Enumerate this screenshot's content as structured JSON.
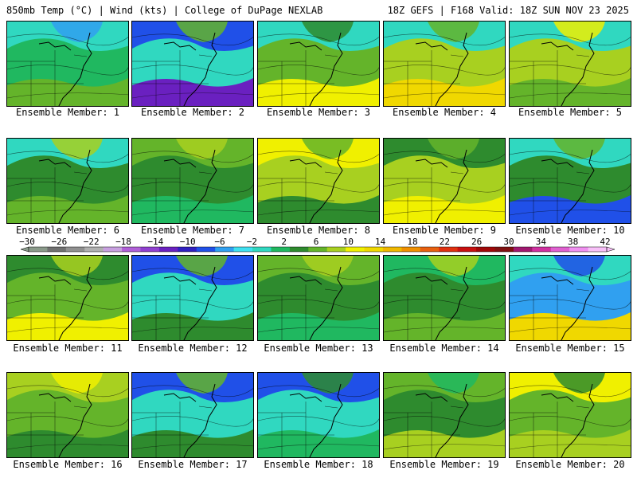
{
  "header": {
    "left": "850mb Temp (°C) | Wind (kts) | College of DuPage NEXLAB",
    "right": "18Z GEFS | F168 Valid: 18Z SUN NOV 23 2025"
  },
  "colorbar": {
    "labels": [
      "−30",
      "−26",
      "−22",
      "−18",
      "−14",
      "−10",
      "−6",
      "−2",
      "2",
      "6",
      "10",
      "14",
      "18",
      "22",
      "26",
      "30",
      "34",
      "38",
      "42"
    ],
    "colors": [
      "#8a9a8a",
      "#707070",
      "#909090",
      "#b0b0b0",
      "#c8a0e0",
      "#b060d8",
      "#9040d0",
      "#6a20c0",
      "#3020c0",
      "#2050e8",
      "#30a0f0",
      "#40e0f0",
      "#30d8c0",
      "#20b860",
      "#2e8b2e",
      "#64b42a",
      "#a8d020",
      "#f0f000",
      "#f0d800",
      "#f0b800",
      "#f09000",
      "#e86010",
      "#e03010",
      "#c81010",
      "#a00808",
      "#801010",
      "#a01870",
      "#d030a0",
      "#e060d0",
      "#f090f0",
      "#f8c0f8"
    ]
  },
  "members": [
    {
      "label": "Ensemble Member: 1",
      "palette": [
        "#20b860",
        "#30d8c0",
        "#64b42a",
        "#30a0f0"
      ]
    },
    {
      "label": "Ensemble Member: 2",
      "palette": [
        "#30d8c0",
        "#2050e8",
        "#6a20c0",
        "#64b42a"
      ]
    },
    {
      "label": "Ensemble Member: 3",
      "palette": [
        "#64b42a",
        "#30d8c0",
        "#f0f000",
        "#2e8b2e"
      ]
    },
    {
      "label": "Ensemble Member: 4",
      "palette": [
        "#a8d020",
        "#30d8c0",
        "#f0d800",
        "#64b42a"
      ]
    },
    {
      "label": "Ensemble Member: 5",
      "palette": [
        "#a8d020",
        "#30d8c0",
        "#64b42a",
        "#f0f000"
      ]
    },
    {
      "label": "Ensemble Member: 6",
      "palette": [
        "#2e8b2e",
        "#30d8c0",
        "#64b42a",
        "#a8d020"
      ]
    },
    {
      "label": "Ensemble Member: 7",
      "palette": [
        "#2e8b2e",
        "#64b42a",
        "#20b860",
        "#a8d020"
      ]
    },
    {
      "label": "Ensemble Member: 8",
      "palette": [
        "#a8d020",
        "#f0f000",
        "#2e8b2e",
        "#64b42a"
      ]
    },
    {
      "label": "Ensemble Member: 9",
      "palette": [
        "#a8d020",
        "#2e8b2e",
        "#f0f000",
        "#64b42a"
      ]
    },
    {
      "label": "Ensemble Member: 10",
      "palette": [
        "#2e8b2e",
        "#30d8c0",
        "#2050e8",
        "#64b42a"
      ]
    },
    {
      "label": "Ensemble Member: 11",
      "palette": [
        "#64b42a",
        "#2e8b2e",
        "#f0f000",
        "#a8d020"
      ]
    },
    {
      "label": "Ensemble Member: 12",
      "palette": [
        "#30d8c0",
        "#2050e8",
        "#2e8b2e",
        "#64b42a"
      ]
    },
    {
      "label": "Ensemble Member: 13",
      "palette": [
        "#2e8b2e",
        "#64b42a",
        "#20b860",
        "#a8d020"
      ]
    },
    {
      "label": "Ensemble Member: 14",
      "palette": [
        "#2e8b2e",
        "#20b860",
        "#64b42a",
        "#a8d020"
      ]
    },
    {
      "label": "Ensemble Member: 15",
      "palette": [
        "#30a0f0",
        "#30d8c0",
        "#f0d800",
        "#2050e8"
      ]
    },
    {
      "label": "Ensemble Member: 16",
      "palette": [
        "#64b42a",
        "#a8d020",
        "#2e8b2e",
        "#f0f000"
      ]
    },
    {
      "label": "Ensemble Member: 17",
      "palette": [
        "#30d8c0",
        "#2050e8",
        "#2e8b2e",
        "#64b42a"
      ]
    },
    {
      "label": "Ensemble Member: 18",
      "palette": [
        "#30d8c0",
        "#2050e8",
        "#20b860",
        "#2e8b2e"
      ]
    },
    {
      "label": "Ensemble Member: 19",
      "palette": [
        "#2e8b2e",
        "#64b42a",
        "#a8d020",
        "#20b860"
      ]
    },
    {
      "label": "Ensemble Member: 20",
      "palette": [
        "#64b42a",
        "#f0f000",
        "#a8d020",
        "#2e8b2e"
      ]
    }
  ]
}
